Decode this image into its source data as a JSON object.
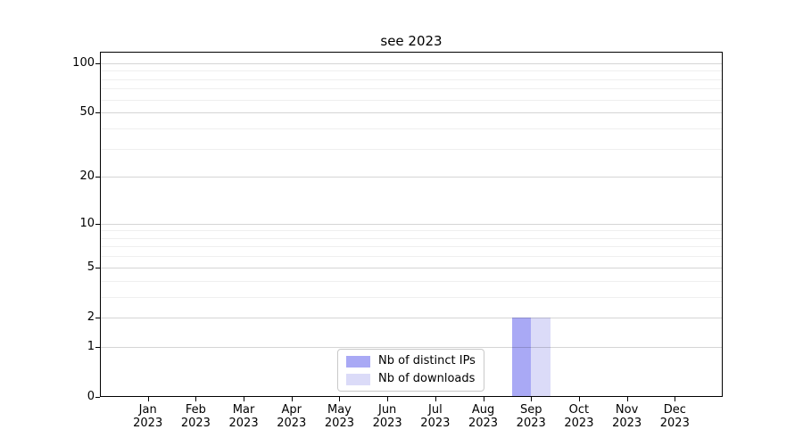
{
  "chart_data": {
    "type": "bar",
    "title": "see 2023",
    "xlabel": "",
    "ylabel": "",
    "categories": [
      "Jan",
      "Feb",
      "Mar",
      "Apr",
      "May",
      "Jun",
      "Jul",
      "Aug",
      "Sep",
      "Oct",
      "Nov",
      "Dec"
    ],
    "x_tick_year": "2023",
    "series": [
      {
        "name": "Nb of distinct IPs",
        "key": "distinct-ips",
        "color": "#a9a9f5",
        "values": [
          0,
          0,
          0,
          0,
          0,
          0,
          0,
          0,
          2,
          0,
          0,
          0
        ]
      },
      {
        "name": "Nb of downloads",
        "key": "downloads",
        "color": "#dbdbf8",
        "values": [
          0,
          0,
          0,
          0,
          0,
          0,
          0,
          0,
          2,
          0,
          0,
          0
        ]
      }
    ],
    "yscale": "log1p",
    "ylim": [
      0,
      117
    ],
    "y_major_ticks": [
      0,
      1,
      2,
      5,
      10,
      20,
      50,
      100
    ],
    "y_minor_ticks": [
      3,
      4,
      6,
      7,
      8,
      9,
      30,
      40,
      60,
      70,
      80,
      90
    ],
    "grid": "on",
    "legend_position": "lower-center-inside"
  },
  "colors": {
    "background": "#ffffff",
    "axis": "#000000",
    "grid_major": "#d5d5d5",
    "grid_minor": "#efefef",
    "legend_border": "#c9c9c9",
    "bar_distinct_ips": "#a9a9f5",
    "bar_downloads": "#dbdbf8"
  }
}
